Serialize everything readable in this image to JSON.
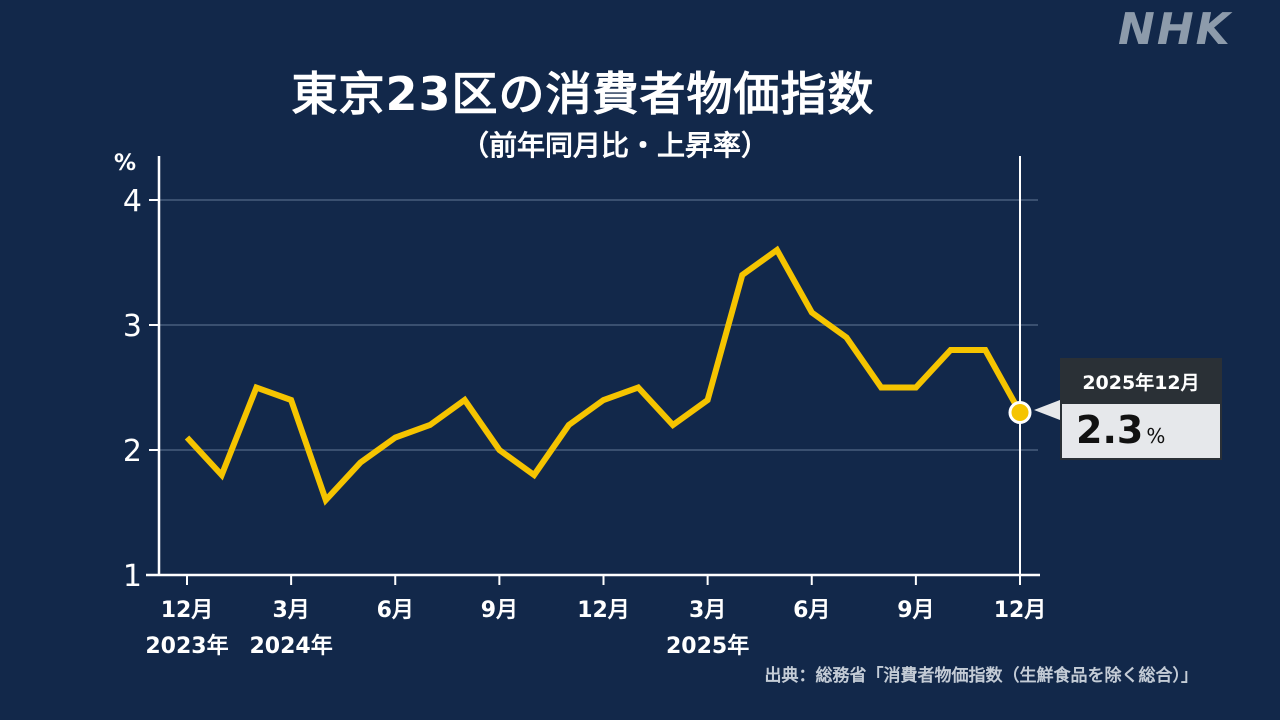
{
  "logo": {
    "text": "NHK",
    "color": "#8d9bab"
  },
  "header": {
    "title": "東京23区の消費者物価指数",
    "subtitle": "（前年同月比・上昇率）"
  },
  "callout": {
    "period": "2025年12月",
    "value": "2.3",
    "unit": "%"
  },
  "source": "出典：総務省「消費者物価指数（生鮮食品を除く総合）」",
  "colors": {
    "background": "#12284a",
    "line": "#f5c400",
    "grid": "#3a5070",
    "axis": "#ffffff"
  },
  "chart_data": {
    "type": "line",
    "title": "東京23区の消費者物価指数",
    "subtitle": "（前年同月比・上昇率）",
    "xlabel": "",
    "ylabel": "%",
    "ylim": [
      1,
      4
    ],
    "yticks": [
      1,
      2,
      3,
      4
    ],
    "grid": true,
    "x": [
      "2023-12",
      "2024-01",
      "2024-02",
      "2024-03",
      "2024-04",
      "2024-05",
      "2024-06",
      "2024-07",
      "2024-08",
      "2024-09",
      "2024-10",
      "2024-11",
      "2024-12",
      "2025-01",
      "2025-02",
      "2025-03",
      "2025-04",
      "2025-05",
      "2025-06",
      "2025-07",
      "2025-08",
      "2025-09",
      "2025-10",
      "2025-11",
      "2025-12"
    ],
    "series": [
      {
        "name": "東京23区 消費者物価指数（生鮮食品を除く総合）前年同月比",
        "values": [
          2.1,
          1.8,
          2.5,
          2.4,
          1.6,
          1.9,
          2.1,
          2.2,
          2.4,
          2.0,
          1.8,
          2.2,
          2.4,
          2.5,
          2.2,
          2.4,
          3.4,
          3.6,
          3.1,
          2.9,
          2.5,
          2.5,
          2.8,
          2.8,
          2.3
        ]
      }
    ],
    "xtick_labels": [
      {
        "month": "12月",
        "year": "2023年",
        "index": 0
      },
      {
        "month": "3月",
        "year": "2024年",
        "index": 3
      },
      {
        "month": "6月",
        "year": "",
        "index": 6
      },
      {
        "month": "9月",
        "year": "",
        "index": 9
      },
      {
        "month": "12月",
        "year": "",
        "index": 12
      },
      {
        "month": "3月",
        "year": "2025年",
        "index": 15
      },
      {
        "month": "6月",
        "year": "",
        "index": 18
      },
      {
        "month": "9月",
        "year": "",
        "index": 21
      },
      {
        "month": "12月",
        "year": "",
        "index": 24
      }
    ],
    "annotations": [
      {
        "x": "2025-12",
        "label": "2025年12月",
        "value": "2.3%"
      }
    ],
    "source": "出典：総務省「消費者物価指数（生鮮食品を除く総合）」"
  }
}
